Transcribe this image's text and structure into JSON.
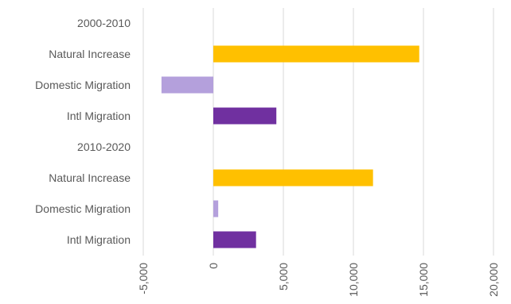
{
  "chart_data": {
    "type": "bar",
    "orientation": "horizontal",
    "categories": [
      "2000-2010",
      "Natural Increase",
      "Domestic Migration",
      "Intl Migration",
      "2010-2020",
      "Natural Increase",
      "Domestic Migration",
      "Intl Migration"
    ],
    "values": [
      null,
      14700,
      -3700,
      4500,
      null,
      11400,
      350,
      3050
    ],
    "xlim": [
      -5000,
      20000
    ],
    "x_ticks": [
      -5000,
      0,
      5000,
      10000,
      15000,
      20000
    ],
    "x_tick_labels": [
      "-5,000",
      "0",
      "5,000",
      "10,000",
      "15,000",
      "20,000"
    ],
    "grid": true,
    "colors": {
      "Natural Increase": "#FFC000",
      "Domestic Migration": "#B4A0DC",
      "Intl Migration": "#7030A0",
      "grid": "#d9d9d9",
      "text": "#595959"
    }
  }
}
